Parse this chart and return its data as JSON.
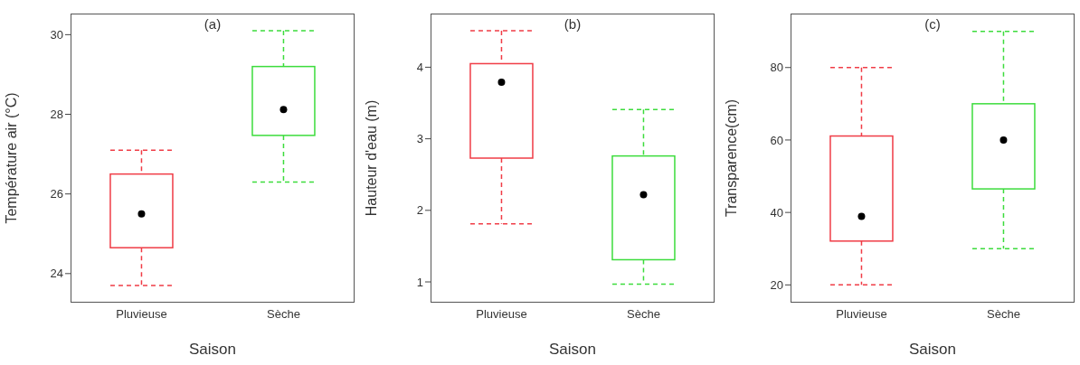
{
  "chart_data": [
    {
      "type": "box",
      "title": "(a)",
      "xlabel": "Saison",
      "ylabel": "Température air (°C)",
      "categories": [
        "Pluvieuse",
        "Sèche"
      ],
      "colors": [
        "#f03c46",
        "#3cdc3c"
      ],
      "ylim": [
        23.27,
        30.53
      ],
      "yticks": [
        24,
        26,
        28,
        30
      ],
      "boxes": [
        {
          "low": 23.7,
          "q1": 24.65,
          "median": 25.5,
          "q3": 26.5,
          "high": 27.1
        },
        {
          "low": 26.3,
          "q1": 27.47,
          "median": 28.12,
          "q3": 29.2,
          "high": 30.1
        }
      ]
    },
    {
      "type": "box",
      "title": "(b)",
      "xlabel": "Saison",
      "ylabel": "Hauteur d'eau (m)",
      "categories": [
        "Pluvieuse",
        "Sèche"
      ],
      "colors": [
        "#f03c46",
        "#3cdc3c"
      ],
      "ylim": [
        0.71,
        4.75
      ],
      "yticks": [
        1,
        2,
        3,
        4
      ],
      "boxes": [
        {
          "low": 1.81,
          "q1": 2.73,
          "median": 3.79,
          "q3": 4.05,
          "high": 4.51
        },
        {
          "low": 0.97,
          "q1": 1.31,
          "median": 2.22,
          "q3": 2.76,
          "high": 3.41
        }
      ]
    },
    {
      "type": "box",
      "title": "(c)",
      "xlabel": "Saison",
      "ylabel": "Transparence(cm)",
      "categories": [
        "Pluvieuse",
        "Sèche"
      ],
      "colors": [
        "#f03c46",
        "#3cdc3c"
      ],
      "ylim": [
        15.1,
        94.9
      ],
      "yticks": [
        20,
        40,
        60,
        80
      ],
      "boxes": [
        {
          "low": 20,
          "q1": 32.1,
          "median": 38.9,
          "q3": 61.1,
          "high": 80
        },
        {
          "low": 30,
          "q1": 46.5,
          "median": 60,
          "q3": 70,
          "high": 90
        }
      ]
    }
  ]
}
